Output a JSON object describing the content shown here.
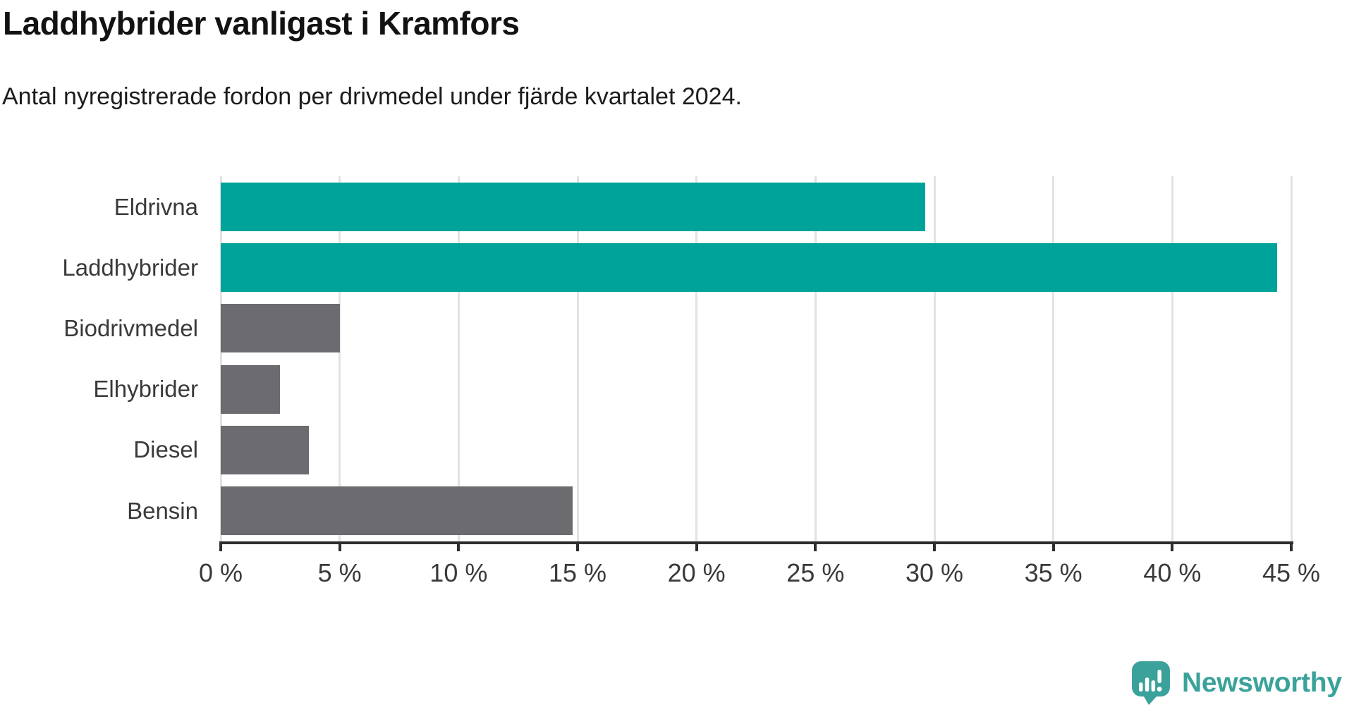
{
  "chart_data": {
    "type": "bar",
    "orientation": "horizontal",
    "title": "Laddhybrider vanligast i Kramfors",
    "subtitle": "Antal nyregistrerade fordon per drivmedel under fjärde kvartalet 2024.",
    "categories": [
      "Eldrivna",
      "Laddhybrider",
      "Biodrivmedel",
      "Elhybrider",
      "Diesel",
      "Bensin"
    ],
    "values": [
      29.6,
      44.4,
      5.0,
      2.5,
      3.7,
      14.8
    ],
    "unit": "%",
    "bar_colors": [
      "#00a39a",
      "#00a39a",
      "#6c6b70",
      "#6c6b70",
      "#6c6b70",
      "#6c6b70"
    ],
    "xlim": [
      0,
      45
    ],
    "x_tick_values": [
      0,
      5,
      10,
      15,
      20,
      25,
      30,
      35,
      40,
      45
    ],
    "x_tick_labels": [
      "0 %",
      "5 %",
      "10 %",
      "15 %",
      "20 %",
      "25 %",
      "30 %",
      "35 %",
      "40 %",
      "45 %"
    ],
    "grid": "vertical-gridlines",
    "legend": "none"
  },
  "branding": {
    "logo_text": "Newsworthy",
    "logo_icon": "newsworthy-speech-bubble-bar-chart-icon",
    "logo_color": "#3ba29b"
  },
  "style": {
    "accent_color": "#00a39a",
    "neutral_color": "#6c6b70",
    "axis_color": "#2e2e2e",
    "gridline_color": "#e2e2e2",
    "background": "#ffffff"
  }
}
